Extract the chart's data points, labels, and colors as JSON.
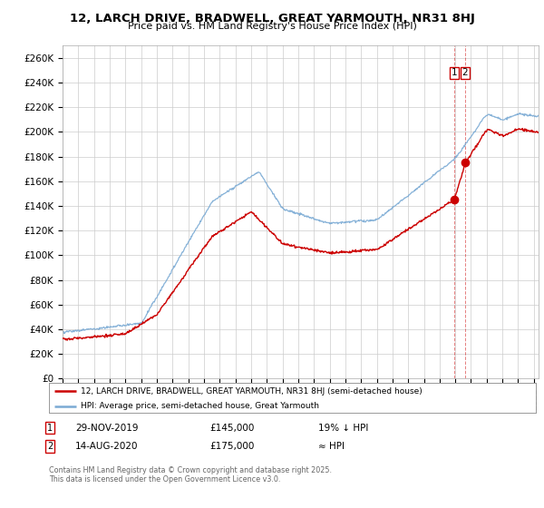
{
  "title": "12, LARCH DRIVE, BRADWELL, GREAT YARMOUTH, NR31 8HJ",
  "subtitle": "Price paid vs. HM Land Registry's House Price Index (HPI)",
  "ylabel_ticks": [
    "£0",
    "£20K",
    "£40K",
    "£60K",
    "£80K",
    "£100K",
    "£120K",
    "£140K",
    "£160K",
    "£180K",
    "£200K",
    "£220K",
    "£240K",
    "£260K"
  ],
  "ytick_values": [
    0,
    20000,
    40000,
    60000,
    80000,
    100000,
    120000,
    140000,
    160000,
    180000,
    200000,
    220000,
    240000,
    260000
  ],
  "ylim": [
    0,
    270000
  ],
  "xlim_start": 1995.0,
  "xlim_end": 2025.3,
  "hpi_color": "#7aaad4",
  "price_color": "#cc0000",
  "sale1_date": 2019.92,
  "sale1_price": 145000,
  "sale2_date": 2020.62,
  "sale2_price": 175000,
  "legend_line1": "12, LARCH DRIVE, BRADWELL, GREAT YARMOUTH, NR31 8HJ (semi-detached house)",
  "legend_line2": "HPI: Average price, semi-detached house, Great Yarmouth",
  "note1_date": "29-NOV-2019",
  "note1_price": "£145,000",
  "note1_info": "19% ↓ HPI",
  "note2_date": "14-AUG-2020",
  "note2_price": "£175,000",
  "note2_info": "≈ HPI",
  "footer": "Contains HM Land Registry data © Crown copyright and database right 2025.\nThis data is licensed under the Open Government Licence v3.0.",
  "background_color": "#ffffff",
  "grid_color": "#cccccc"
}
